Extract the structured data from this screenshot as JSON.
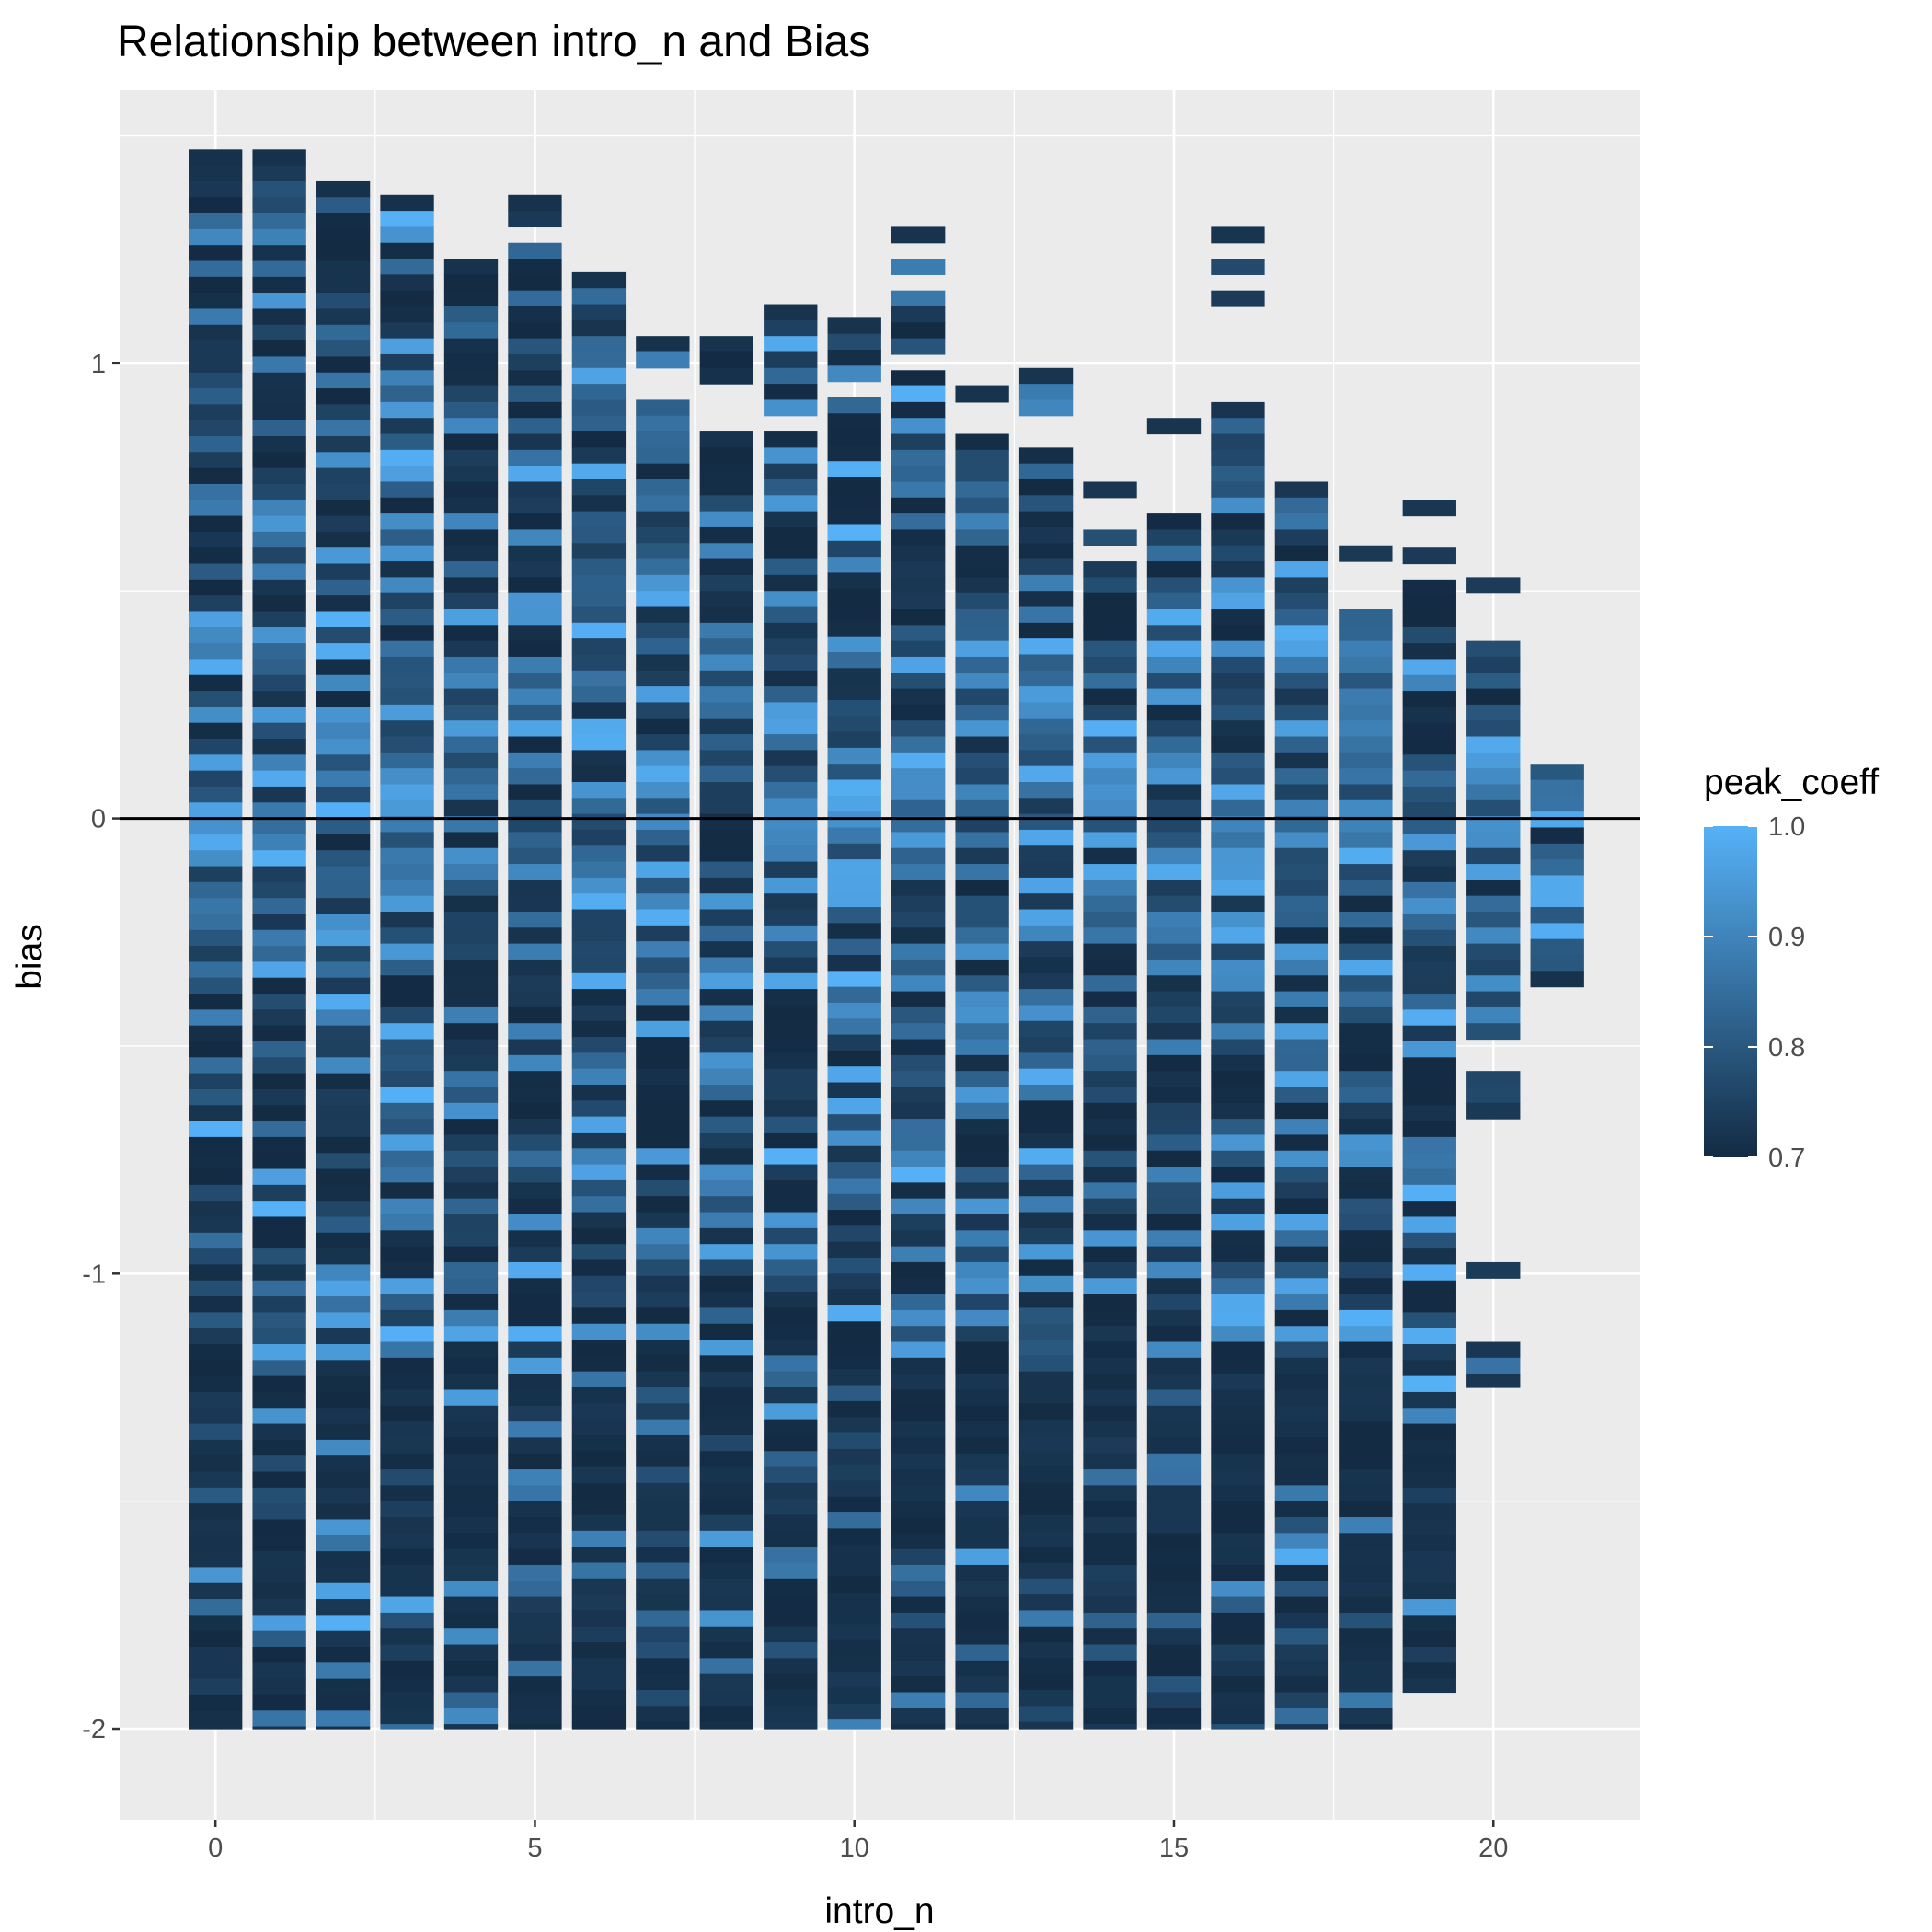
{
  "chart_data": {
    "type": "heatmap",
    "title": "Relationship between intro_n and Bias",
    "xlabel": "intro_n",
    "ylabel": "bias",
    "xlim": [
      -1.5,
      22.3
    ],
    "ylim": [
      -2.2,
      1.6
    ],
    "xticks": [
      0,
      5,
      10,
      15,
      20
    ],
    "xtick_labels": [
      "0",
      "5",
      "10",
      "15",
      "20"
    ],
    "yticks": [
      -2,
      -1,
      0,
      1
    ],
    "ytick_labels": [
      "-2",
      "-1",
      "0",
      "1"
    ],
    "hline_y": 0,
    "bin_height": 0.035,
    "grid": true,
    "legend": {
      "title": "peak_coeff",
      "position": "right",
      "min": 0.7,
      "max": 1.0,
      "ticks": [
        1.0,
        0.9,
        0.8,
        0.7
      ],
      "tick_labels": [
        "1.0",
        "0.9",
        "0.8",
        "0.7"
      ],
      "color_low": "#132B43",
      "color_high": "#56B1F7"
    },
    "columns": [
      {
        "x": 0,
        "top": 1.47,
        "bottom": -2.0,
        "gaps": [],
        "color_seed": 11
      },
      {
        "x": 1,
        "top": 1.47,
        "bottom": -2.0,
        "gaps": [],
        "color_seed": 23
      },
      {
        "x": 2,
        "top": 1.4,
        "bottom": -2.0,
        "gaps": [],
        "color_seed": 37
      },
      {
        "x": 3,
        "top": 1.37,
        "bottom": -2.0,
        "gaps": [],
        "color_seed": 41
      },
      {
        "x": 4,
        "top": 1.23,
        "bottom": -2.0,
        "gaps": [],
        "color_seed": 53
      },
      {
        "x": 5,
        "top": 1.37,
        "bottom": -2.0,
        "gaps": [
          [
            1.26,
            1.3
          ]
        ],
        "color_seed": 67
      },
      {
        "x": 6,
        "top": 1.2,
        "bottom": -2.0,
        "gaps": [],
        "color_seed": 71
      },
      {
        "x": 7,
        "top": 1.06,
        "bottom": -2.0,
        "gaps": [
          [
            0.93,
            0.99
          ]
        ],
        "color_seed": 83
      },
      {
        "x": 8,
        "top": 1.06,
        "bottom": -2.0,
        "gaps": [
          [
            0.86,
            0.97
          ]
        ],
        "color_seed": 97
      },
      {
        "x": 9,
        "top": 1.13,
        "bottom": -2.0,
        "gaps": [
          [
            0.86,
            0.9
          ]
        ],
        "color_seed": 101
      },
      {
        "x": 10,
        "top": 1.1,
        "bottom": -2.0,
        "gaps": [
          [
            0.93,
            0.97
          ]
        ],
        "color_seed": 113
      },
      {
        "x": 11,
        "top": 1.3,
        "bottom": -2.0,
        "gaps": [
          [
            1.23,
            1.27
          ],
          [
            1.16,
            1.2
          ],
          [
            0.97,
            1.03
          ]
        ],
        "color_seed": 127
      },
      {
        "x": 12,
        "top": 0.95,
        "bottom": -2.0,
        "gaps": [
          [
            0.86,
            0.9
          ]
        ],
        "color_seed": 131
      },
      {
        "x": 13,
        "top": 0.99,
        "bottom": -2.0,
        "gaps": [
          [
            0.82,
            0.9
          ]
        ],
        "color_seed": 149
      },
      {
        "x": 14,
        "top": 0.74,
        "bottom": -2.0,
        "gaps": [
          [
            0.65,
            0.71
          ],
          [
            0.55,
            0.59
          ]
        ],
        "color_seed": 157
      },
      {
        "x": 15,
        "top": 0.88,
        "bottom": -2.0,
        "gaps": [
          [
            0.68,
            0.84
          ]
        ],
        "color_seed": 163
      },
      {
        "x": 16,
        "top": 1.3,
        "bottom": -2.0,
        "gaps": [
          [
            1.23,
            1.27
          ],
          [
            1.16,
            1.2
          ],
          [
            0.9,
            1.13
          ]
        ],
        "color_seed": 179
      },
      {
        "x": 17,
        "top": 0.74,
        "bottom": -2.0,
        "gaps": [],
        "color_seed": 181
      },
      {
        "x": 18,
        "top": 0.6,
        "bottom": -2.0,
        "gaps": [
          [
            0.45,
            0.55
          ]
        ],
        "color_seed": 191
      },
      {
        "x": 19,
        "top": 0.7,
        "bottom": -1.92,
        "gaps": [
          [
            0.6,
            0.66
          ],
          [
            0.51,
            0.55
          ]
        ],
        "color_seed": 199
      },
      {
        "x": 20,
        "top": 0.53,
        "bottom": -1.25,
        "gaps": [
          [
            0.4,
            0.49
          ],
          [
            -0.55,
            -0.5
          ],
          [
            -0.97,
            -0.65
          ],
          [
            -1.14,
            -1.0
          ]
        ],
        "color_seed": 211
      },
      {
        "x": 21,
        "top": 0.12,
        "bottom": -0.37,
        "gaps": [],
        "color_seed": 223
      }
    ]
  }
}
